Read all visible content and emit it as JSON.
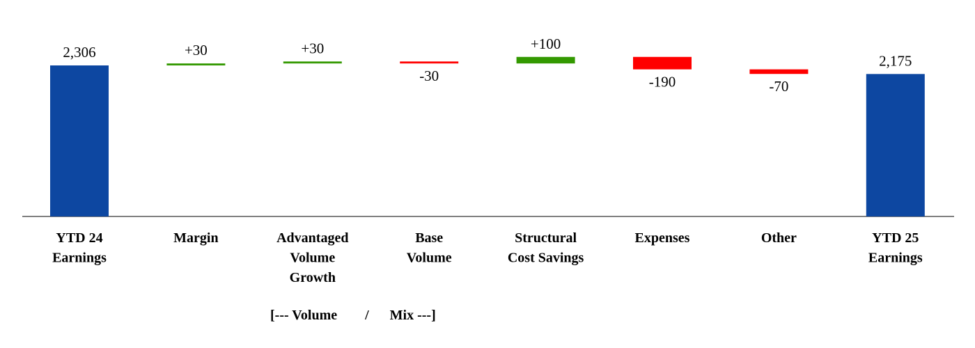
{
  "chart_data": {
    "type": "waterfall",
    "categories": [
      [
        "YTD 24",
        "Earnings"
      ],
      [
        "Margin"
      ],
      [
        "Advantaged",
        "Volume",
        "Growth"
      ],
      [
        "Base",
        "Volume"
      ],
      [
        "Structural",
        "Cost Savings"
      ],
      [
        "Expenses"
      ],
      [
        "Other"
      ],
      [
        "YTD 25",
        "Earnings"
      ]
    ],
    "values": [
      2306,
      30,
      30,
      -30,
      100,
      -190,
      -70,
      2175
    ],
    "kinds": [
      "total",
      "delta",
      "delta",
      "delta",
      "delta",
      "delta",
      "delta",
      "total"
    ],
    "labels": [
      "2,306",
      "+30",
      "+30",
      "-30",
      "+100",
      "-190",
      "-70",
      "2,175"
    ],
    "annotation": "[--- Volume        /      Mix ---]",
    "colors": {
      "total": "#0D47A1",
      "increase": "#339900",
      "decrease": "#FF0000",
      "axis": "#808080"
    },
    "grid": false,
    "y_axis_visible": false
  }
}
